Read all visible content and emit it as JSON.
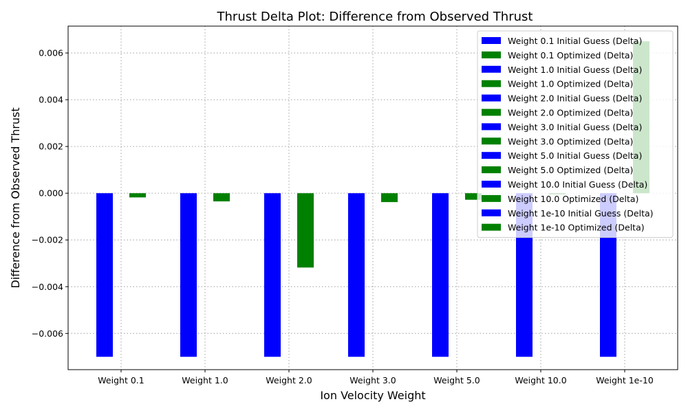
{
  "chart_data": {
    "type": "bar",
    "title": "Thrust Delta Plot: Difference from Observed Thrust",
    "xlabel": "Ion Velocity Weight",
    "ylabel": "Difference from Observed Thrust",
    "categories": [
      "Weight 0.1",
      "Weight 1.0",
      "Weight 2.0",
      "Weight 3.0",
      "Weight 5.0",
      "Weight 10.0",
      "Weight 1e-10"
    ],
    "ylim": [
      -0.00755,
      0.00715
    ],
    "yticks": [
      -0.006,
      -0.004,
      -0.002,
      0.0,
      0.002,
      0.004,
      0.006
    ],
    "ytick_labels": [
      "−0.006",
      "−0.004",
      "−0.002",
      "0.000",
      "0.002",
      "0.004",
      "0.006"
    ],
    "grid": true,
    "legend_position": "top-right",
    "colors": {
      "initial": "#0000ff",
      "optimized": "#008000",
      "grid": "#b0b0b0"
    },
    "series": [
      {
        "name": "Weight 0.1 Initial Guess (Delta)",
        "kind": "initial",
        "category": "Weight 0.1",
        "value": -0.007
      },
      {
        "name": "Weight 0.1 Optimized (Delta)",
        "kind": "optimized",
        "category": "Weight 0.1",
        "value": -0.00018
      },
      {
        "name": "Weight 1.0 Initial Guess (Delta)",
        "kind": "initial",
        "category": "Weight 1.0",
        "value": -0.007
      },
      {
        "name": "Weight 1.0 Optimized (Delta)",
        "kind": "optimized",
        "category": "Weight 1.0",
        "value": -0.00035
      },
      {
        "name": "Weight 2.0 Initial Guess (Delta)",
        "kind": "initial",
        "category": "Weight 2.0",
        "value": -0.007
      },
      {
        "name": "Weight 2.0 Optimized (Delta)",
        "kind": "optimized",
        "category": "Weight 2.0",
        "value": -0.00318
      },
      {
        "name": "Weight 3.0 Initial Guess (Delta)",
        "kind": "initial",
        "category": "Weight 3.0",
        "value": -0.007
      },
      {
        "name": "Weight 3.0 Optimized (Delta)",
        "kind": "optimized",
        "category": "Weight 3.0",
        "value": -0.00038
      },
      {
        "name": "Weight 5.0 Initial Guess (Delta)",
        "kind": "initial",
        "category": "Weight 5.0",
        "value": -0.007
      },
      {
        "name": "Weight 5.0 Optimized (Delta)",
        "kind": "optimized",
        "category": "Weight 5.0",
        "value": -0.00028
      },
      {
        "name": "Weight 10.0 Initial Guess (Delta)",
        "kind": "initial",
        "category": "Weight 10.0",
        "value": -0.007
      },
      {
        "name": "Weight 10.0 Optimized (Delta)",
        "kind": "optimized",
        "category": "Weight 10.0",
        "value": -5e-05
      },
      {
        "name": "Weight 1e-10 Initial Guess (Delta)",
        "kind": "initial",
        "category": "Weight 1e-10",
        "value": -0.007
      },
      {
        "name": "Weight 1e-10 Optimized (Delta)",
        "kind": "optimized",
        "category": "Weight 1e-10",
        "value": 0.0065
      }
    ]
  }
}
